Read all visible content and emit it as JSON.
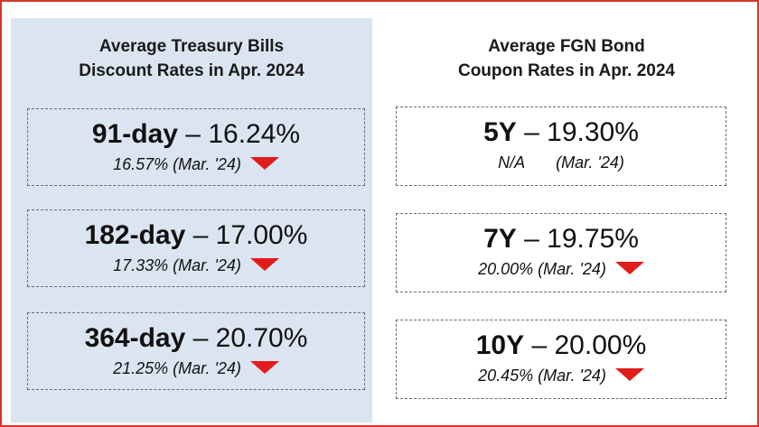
{
  "left_panel": {
    "title_line1": "Average Treasury Bills",
    "title_line2": "Discount Rates in Apr. 2024",
    "cards": [
      {
        "term": "91-day",
        "sep": " – ",
        "value": "16.24%",
        "previous": "16.57% (Mar. '24)",
        "trend": "down"
      },
      {
        "term": "182-day",
        "sep": " – ",
        "value": "17.00%",
        "previous": "17.33% (Mar. '24)",
        "trend": "down"
      },
      {
        "term": "364-day",
        "sep": " – ",
        "value": "20.70%",
        "previous": "21.25% (Mar. '24)",
        "trend": "down"
      }
    ]
  },
  "right_panel": {
    "title_line1": "Average FGN Bond",
    "title_line2": "Coupon Rates in Apr. 2024",
    "cards": [
      {
        "term": "5Y",
        "sep": " – ",
        "value": "19.30%",
        "previous_value": "N/A",
        "previous_period": "(Mar. '24)",
        "trend": "none"
      },
      {
        "term": "7Y",
        "sep": " – ",
        "value": "19.75%",
        "previous": "20.00% (Mar. '24)",
        "trend": "down"
      },
      {
        "term": "10Y",
        "sep": " – ",
        "value": "20.00%",
        "previous": "20.45% (Mar. '24)",
        "trend": "down"
      }
    ]
  },
  "colors": {
    "frame_border": "#d9342b",
    "left_panel_bg": "#dbe5f1",
    "down_arrow": "#e21b1b"
  },
  "icons": {
    "trend_down": "red-down-triangle-icon"
  }
}
